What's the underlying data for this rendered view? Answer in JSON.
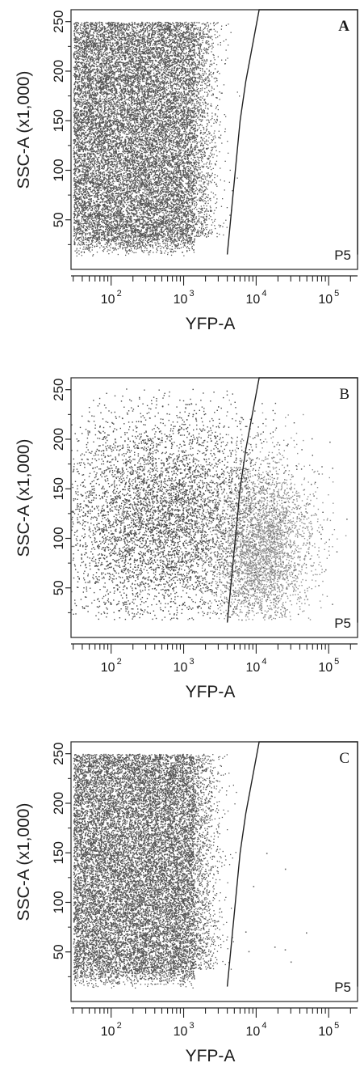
{
  "chart_data": [
    {
      "type": "scatter",
      "panel_letter": "A",
      "xlabel": "YFP-A",
      "ylabel": "SSC-A (x1,000)",
      "xscale": "log",
      "xlim": [
        28,
        250000
      ],
      "ylim": [
        0,
        262
      ],
      "x_ticks": [
        "10^2",
        "10^3",
        "10^4",
        "10^5"
      ],
      "y_ticks": [
        50,
        100,
        150,
        200,
        250
      ],
      "gate": {
        "label": "P5",
        "vertices": [
          [
            4000,
            15
          ],
          [
            6000,
            150
          ],
          [
            7200,
            190
          ],
          [
            11000,
            262
          ],
          [
            250000,
            262
          ],
          [
            250000,
            15
          ]
        ]
      },
      "populations": [
        {
          "color": "#555555",
          "count": 14000,
          "x_range": [
            30,
            1400
          ],
          "y_range": [
            33,
            250
          ],
          "density": "uniform-dense",
          "tail": 1800
        }
      ],
      "events_in_gate": 0
    },
    {
      "type": "scatter",
      "panel_letter": "B",
      "xlabel": "YFP-A",
      "ylabel": "SSC-A (x1,000)",
      "xscale": "log",
      "xlim": [
        28,
        250000
      ],
      "ylim": [
        0,
        262
      ],
      "x_ticks": [
        "10^2",
        "10^3",
        "10^4",
        "10^5"
      ],
      "y_ticks": [
        50,
        100,
        150,
        200,
        250
      ],
      "gate": {
        "label": "P5",
        "vertices": [
          [
            4000,
            15
          ],
          [
            6000,
            150
          ],
          [
            7200,
            190
          ],
          [
            11000,
            262
          ],
          [
            250000,
            262
          ],
          [
            250000,
            15
          ]
        ]
      },
      "populations": [
        {
          "color": "#4a4a4a",
          "count": 6000,
          "x_center": 500,
          "x_spread": 0.75,
          "y_center": 120,
          "y_spread": 55
        },
        {
          "color": "#8e8e8e",
          "count": 3200,
          "x_center": 12000,
          "x_spread": 0.35,
          "y_center": 90,
          "y_spread": 45
        }
      ],
      "events_in_gate": 3200
    },
    {
      "type": "scatter",
      "panel_letter": "C",
      "xlabel": "YFP-A",
      "ylabel": "SSC-A (x1,000)",
      "xscale": "log",
      "xlim": [
        28,
        250000
      ],
      "ylim": [
        0,
        262
      ],
      "x_ticks": [
        "10^2",
        "10^3",
        "10^4",
        "10^5"
      ],
      "y_ticks": [
        50,
        100,
        150,
        200,
        250
      ],
      "gate": {
        "label": "P5",
        "vertices": [
          [
            4000,
            15
          ],
          [
            6000,
            150
          ],
          [
            7200,
            190
          ],
          [
            11000,
            262
          ],
          [
            250000,
            262
          ],
          [
            250000,
            15
          ]
        ]
      },
      "populations": [
        {
          "color": "#555555",
          "count": 14000,
          "x_range": [
            30,
            1400
          ],
          "y_range": [
            33,
            250
          ],
          "density": "uniform-dense",
          "tail": 1800
        }
      ],
      "events_in_gate": 9
    }
  ]
}
